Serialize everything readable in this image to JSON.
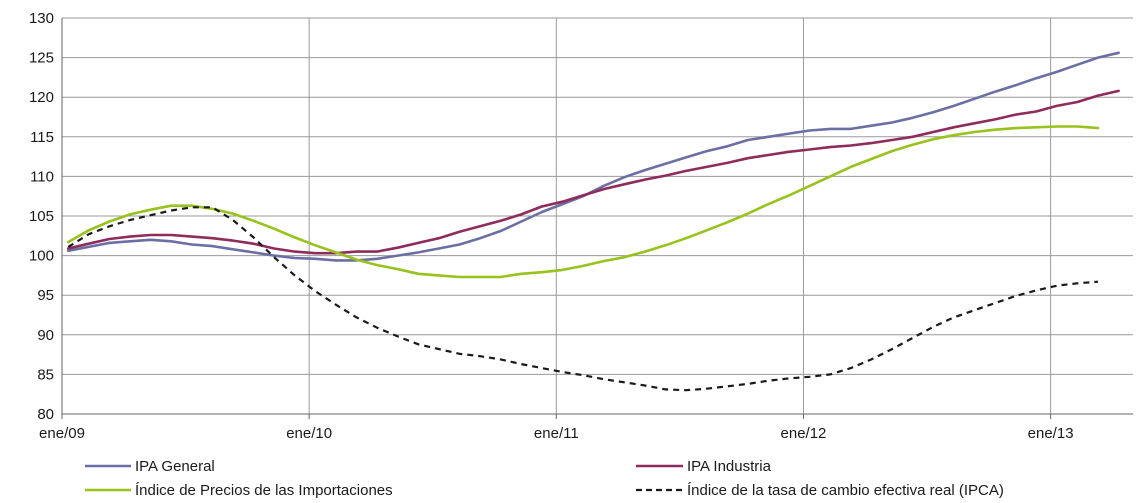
{
  "chart_data": {
    "type": "line",
    "title": "",
    "xlabel": "",
    "ylabel": "",
    "ylim": [
      80,
      130
    ],
    "yticks": [
      80,
      85,
      90,
      95,
      100,
      105,
      110,
      115,
      120,
      125,
      130
    ],
    "grid": true,
    "legend_position": "bottom",
    "x_start": "ene/09",
    "x_tick_labels": [
      "ene/09",
      "ene/10",
      "ene/11",
      "ene/12",
      "ene/13"
    ],
    "series": [
      {
        "name": "IPA General",
        "color": "#6b6fa3",
        "dash": "solid",
        "values": [
          100.6,
          101.1,
          101.6,
          101.8,
          102.0,
          101.8,
          101.4,
          101.2,
          100.8,
          100.4,
          100.0,
          99.7,
          99.6,
          99.4,
          99.4,
          99.6,
          100.0,
          100.4,
          100.9,
          101.4,
          102.2,
          103.1,
          104.3,
          105.5,
          106.5,
          107.5,
          108.8,
          109.9,
          110.8,
          111.6,
          112.4,
          113.2,
          113.8,
          114.6,
          115.0,
          115.4,
          115.8,
          116.0,
          116.0,
          116.4,
          116.8,
          117.4,
          118.1,
          118.9,
          119.8,
          120.7,
          121.5,
          122.4,
          123.2,
          124.1,
          125.0,
          125.6
        ]
      },
      {
        "name": "IPA Industria",
        "color": "#8e2c5c",
        "dash": "solid",
        "values": [
          100.9,
          101.5,
          102.1,
          102.4,
          102.6,
          102.6,
          102.4,
          102.2,
          101.9,
          101.5,
          100.9,
          100.5,
          100.3,
          100.3,
          100.5,
          100.5,
          101.0,
          101.6,
          102.2,
          103.0,
          103.7,
          104.4,
          105.2,
          106.2,
          106.8,
          107.6,
          108.4,
          109.0,
          109.6,
          110.1,
          110.7,
          111.2,
          111.7,
          112.3,
          112.7,
          113.1,
          113.4,
          113.7,
          113.9,
          114.2,
          114.6,
          115.0,
          115.6,
          116.2,
          116.7,
          117.2,
          117.8,
          118.2,
          118.9,
          119.4,
          120.2,
          120.8
        ]
      },
      {
        "name": "Índice de Precios de las Importaciones",
        "color": "#99c21c",
        "dash": "solid",
        "values": [
          101.7,
          103.2,
          104.3,
          105.2,
          105.8,
          106.3,
          106.3,
          105.9,
          105.3,
          104.4,
          103.4,
          102.3,
          101.3,
          100.4,
          99.5,
          98.8,
          98.3,
          97.7,
          97.5,
          97.3,
          97.3,
          97.3,
          97.7,
          97.9,
          98.2,
          98.7,
          99.3,
          99.8,
          100.5,
          101.3,
          102.2,
          103.2,
          104.2,
          105.3,
          106.5,
          107.6,
          108.8,
          110.0,
          111.2,
          112.2,
          113.2,
          114.0,
          114.7,
          115.2,
          115.6,
          115.9,
          116.1,
          116.2,
          116.3,
          116.3,
          116.1
        ]
      },
      {
        "name": "Índice de la tasa de cambio efectiva real (IPCA)",
        "color": "#1a1a1a",
        "dash": "dashed",
        "values": [
          101.1,
          102.7,
          103.7,
          104.5,
          105.1,
          105.7,
          106.1,
          106.1,
          104.5,
          102.3,
          99.8,
          97.5,
          95.5,
          93.8,
          92.2,
          90.9,
          89.8,
          88.8,
          88.2,
          87.6,
          87.3,
          86.9,
          86.3,
          85.8,
          85.3,
          84.9,
          84.4,
          84.0,
          83.6,
          83.1,
          83.0,
          83.2,
          83.5,
          83.8,
          84.2,
          84.5,
          84.7,
          85.0,
          85.8,
          86.9,
          88.2,
          89.6,
          91.0,
          92.2,
          93.1,
          94.0,
          94.9,
          95.6,
          96.2,
          96.5,
          96.7
        ]
      }
    ]
  }
}
